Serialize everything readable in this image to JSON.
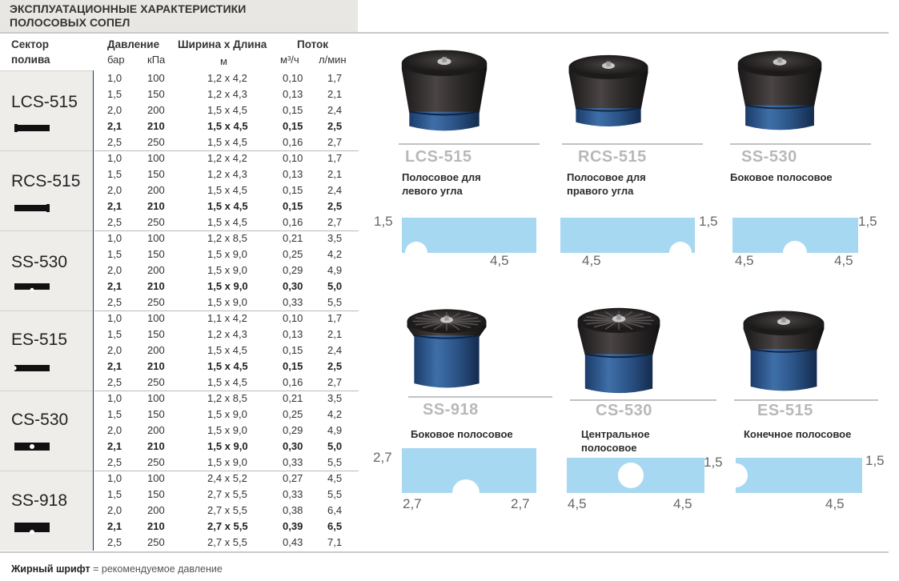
{
  "title_line1": "ЭКСПЛУАТАЦИОННЫЕ ХАРАКТЕРИСТИКИ",
  "title_line2": "ПОЛОСОВЫХ СОПЕЛ",
  "headers": {
    "sector1": "Сектор",
    "sector2": "полива",
    "pressure": "Давление",
    "bar": "бар",
    "kpa": "кПа",
    "wxl": "Ширина х Длина",
    "m": "м",
    "flow": "Поток",
    "m3h": "м³/ч",
    "lmin": "л/мин"
  },
  "groups": [
    {
      "model": "LCS-515",
      "rows": [
        [
          "1,0",
          "100",
          "1,2 x 4,2",
          "0,10",
          "1,7"
        ],
        [
          "1,5",
          "150",
          "1,2 x 4,3",
          "0,13",
          "2,1"
        ],
        [
          "2,0",
          "200",
          "1,5 x 4,5",
          "0,15",
          "2,4"
        ],
        [
          "2,1",
          "210",
          "1,5 x 4,5",
          "0,15",
          "2,5"
        ],
        [
          "2,5",
          "250",
          "1,5 x 4,5",
          "0,16",
          "2,7"
        ]
      ]
    },
    {
      "model": "RCS-515",
      "rows": [
        [
          "1,0",
          "100",
          "1,2 x 4,2",
          "0,10",
          "1,7"
        ],
        [
          "1,5",
          "150",
          "1,2 x 4,3",
          "0,13",
          "2,1"
        ],
        [
          "2,0",
          "200",
          "1,5 x 4,5",
          "0,15",
          "2,4"
        ],
        [
          "2,1",
          "210",
          "1,5 x 4,5",
          "0,15",
          "2,5"
        ],
        [
          "2,5",
          "250",
          "1,5 x 4,5",
          "0,16",
          "2,7"
        ]
      ]
    },
    {
      "model": "SS-530",
      "rows": [
        [
          "1,0",
          "100",
          "1,2 x 8,5",
          "0,21",
          "3,5"
        ],
        [
          "1,5",
          "150",
          "1,5 x 9,0",
          "0,25",
          "4,2"
        ],
        [
          "2,0",
          "200",
          "1,5 x 9,0",
          "0,29",
          "4,9"
        ],
        [
          "2,1",
          "210",
          "1,5 x 9,0",
          "0,30",
          "5,0"
        ],
        [
          "2,5",
          "250",
          "1,5 x 9,0",
          "0,33",
          "5,5"
        ]
      ]
    },
    {
      "model": "ES-515",
      "rows": [
        [
          "1,0",
          "100",
          "1,1 x 4,2",
          "0,10",
          "1,7"
        ],
        [
          "1,5",
          "150",
          "1,2 x 4,3",
          "0,13",
          "2,1"
        ],
        [
          "2,0",
          "200",
          "1,5 x 4,5",
          "0,15",
          "2,4"
        ],
        [
          "2,1",
          "210",
          "1,5 x 4,5",
          "0,15",
          "2,5"
        ],
        [
          "2,5",
          "250",
          "1,5 x 4,5",
          "0,16",
          "2,7"
        ]
      ]
    },
    {
      "model": "CS-530",
      "rows": [
        [
          "1,0",
          "100",
          "1,2 x 8,5",
          "0,21",
          "3,5"
        ],
        [
          "1,5",
          "150",
          "1,5 x 9,0",
          "0,25",
          "4,2"
        ],
        [
          "2,0",
          "200",
          "1,5 x 9,0",
          "0,29",
          "4,9"
        ],
        [
          "2,1",
          "210",
          "1,5 x 9,0",
          "0,30",
          "5,0"
        ],
        [
          "2,5",
          "250",
          "1,5 x 9,0",
          "0,33",
          "5,5"
        ]
      ]
    },
    {
      "model": "SS-918",
      "rows": [
        [
          "1,0",
          "100",
          "2,4 x 5,2",
          "0,27",
          "4,5"
        ],
        [
          "1,5",
          "150",
          "2,7 x 5,5",
          "0,33",
          "5,5"
        ],
        [
          "2,0",
          "200",
          "2,7 x 5,5",
          "0,38",
          "6,4"
        ],
        [
          "2,1",
          "210",
          "2,7 x 5,5",
          "0,39",
          "6,5"
        ],
        [
          "2,5",
          "250",
          "2,7 x 5,5",
          "0,43",
          "7,1"
        ]
      ]
    }
  ],
  "recommended_row_index": 3,
  "footnote_bold": "Жирный шрифт",
  "footnote_rest": " = рекомендуемое давление",
  "products": [
    {
      "name": "LCS-515",
      "desc1": "Полосовое для",
      "desc2": "левого угла",
      "dims": [
        "1,5",
        "4,5"
      ]
    },
    {
      "name": "RCS-515",
      "desc1": "Полосовое для",
      "desc2": "правого угла",
      "dims": [
        "1,5",
        "4,5"
      ]
    },
    {
      "name": "SS-530",
      "desc1": "Боковое полосовое",
      "desc2": "",
      "dims": [
        "1,5",
        "4,5",
        "4,5"
      ]
    },
    {
      "name": "SS-918",
      "desc1": "Боковое полосовое",
      "desc2": "",
      "dims": [
        "2,7",
        "2,7",
        "2,7"
      ]
    },
    {
      "name": "CS-530",
      "desc1": "Центральное",
      "desc2": "полосовое",
      "dims": [
        "1,5",
        "4,5",
        "4,5"
      ]
    },
    {
      "name": "ES-515",
      "desc1": "Конечное полосовое",
      "desc2": "",
      "dims": [
        "1,5",
        "4,5"
      ]
    }
  ],
  "colors": {
    "accent_bar": "#0d3a73",
    "pattern": "#a7d8f2",
    "model_cell": "#efedea"
  }
}
